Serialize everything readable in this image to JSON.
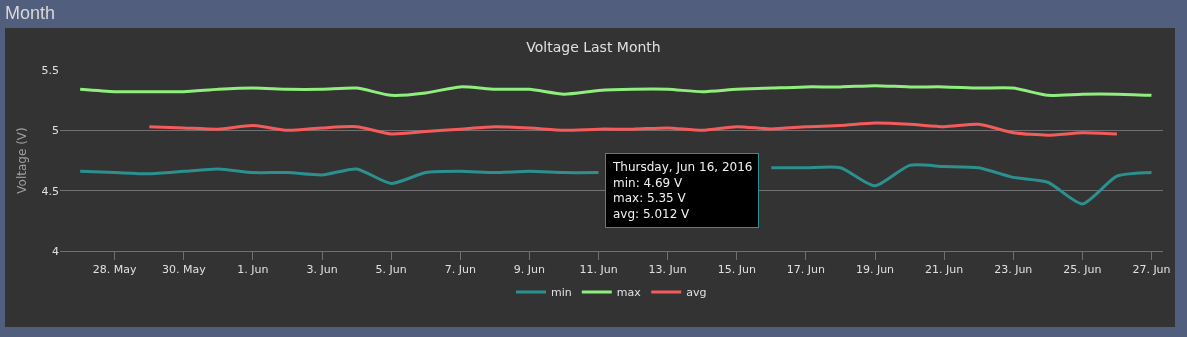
{
  "chart_data": {
    "type": "line",
    "title": "Voltage Last Month",
    "ylabel": "Voltage (V)",
    "x": [
      "2016-05-27",
      "2016-05-28",
      "2016-05-29",
      "2016-05-30",
      "2016-05-31",
      "2016-06-01",
      "2016-06-02",
      "2016-06-03",
      "2016-06-04",
      "2016-06-05",
      "2016-06-06",
      "2016-06-07",
      "2016-06-08",
      "2016-06-09",
      "2016-06-10",
      "2016-06-11",
      "2016-06-12",
      "2016-06-13",
      "2016-06-14",
      "2016-06-15",
      "2016-06-16",
      "2016-06-17",
      "2016-06-18",
      "2016-06-19",
      "2016-06-20",
      "2016-06-21",
      "2016-06-22",
      "2016-06-23",
      "2016-06-24",
      "2016-06-25",
      "2016-06-26",
      "2016-06-27"
    ],
    "series": [
      {
        "name": "min",
        "color": "#2b908f",
        "values": [
          4.66,
          4.65,
          4.64,
          4.66,
          4.68,
          4.65,
          4.65,
          4.63,
          4.68,
          4.56,
          4.65,
          4.66,
          4.65,
          4.66,
          4.65,
          4.65,
          null,
          null,
          null,
          null,
          4.69,
          4.69,
          4.69,
          4.54,
          4.71,
          4.7,
          4.69,
          4.61,
          4.57,
          4.39,
          4.62,
          4.65
        ]
      },
      {
        "name": "max",
        "color": "#90ee7e",
        "values": [
          5.34,
          5.32,
          5.32,
          5.32,
          5.34,
          5.35,
          5.34,
          5.34,
          5.35,
          5.29,
          5.31,
          5.36,
          5.34,
          5.34,
          5.3,
          5.33,
          5.34,
          5.34,
          5.32,
          5.34,
          5.35,
          5.36,
          5.36,
          5.37,
          5.36,
          5.36,
          5.35,
          5.35,
          5.29,
          5.3,
          5.3,
          5.29
        ]
      },
      {
        "name": "avg",
        "color": "#f45b5b",
        "values": [
          null,
          null,
          5.03,
          5.02,
          5.01,
          5.04,
          5.0,
          5.02,
          5.03,
          4.97,
          4.99,
          5.01,
          5.03,
          5.02,
          5.0,
          5.01,
          5.01,
          5.02,
          5.0,
          5.03,
          5.012,
          5.03,
          5.04,
          5.06,
          5.05,
          5.03,
          5.05,
          4.98,
          4.96,
          4.98,
          4.97,
          null
        ]
      }
    ],
    "xlim": [
      "2016-05-26T10:00",
      "2016-06-27T08:00"
    ],
    "xticks": [
      {
        "value": "2016-05-28",
        "label": "28. May"
      },
      {
        "value": "2016-05-30",
        "label": "30. May"
      },
      {
        "value": "2016-06-01",
        "label": "1. Jun"
      },
      {
        "value": "2016-06-03",
        "label": "3. Jun"
      },
      {
        "value": "2016-06-05",
        "label": "5. Jun"
      },
      {
        "value": "2016-06-07",
        "label": "7. Jun"
      },
      {
        "value": "2016-06-09",
        "label": "9. Jun"
      },
      {
        "value": "2016-06-11",
        "label": "11. Jun"
      },
      {
        "value": "2016-06-13",
        "label": "13. Jun"
      },
      {
        "value": "2016-06-15",
        "label": "15. Jun"
      },
      {
        "value": "2016-06-17",
        "label": "17. Jun"
      },
      {
        "value": "2016-06-19",
        "label": "19. Jun"
      },
      {
        "value": "2016-06-21",
        "label": "21. Jun"
      },
      {
        "value": "2016-06-23",
        "label": "23. Jun"
      },
      {
        "value": "2016-06-25",
        "label": "25. Jun"
      },
      {
        "value": "2016-06-27",
        "label": "27. Jun"
      }
    ],
    "ylim": [
      4,
      5.5
    ],
    "yticks": [
      4,
      4.5,
      5,
      5.5
    ],
    "grid": "y",
    "legend": "bottom",
    "marker": "none",
    "line_style": "solid",
    "annotations": [
      "Month",
      {
        "text": "Thursday, Jun 16, 2016\nmin: 4.69 V\nmax: 5.35 V\navg: 5.012 V",
        "x": "2016-06-16",
        "y": 4.69
      }
    ]
  }
}
